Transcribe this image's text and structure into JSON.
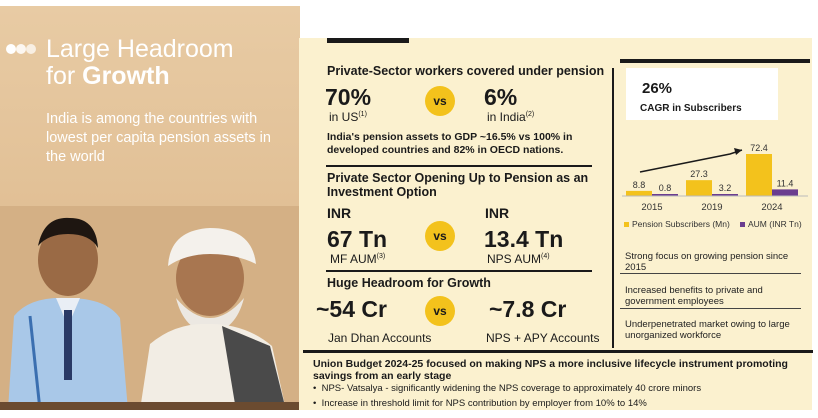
{
  "left": {
    "title_line1": "Large Headroom",
    "title_line2_prefix": "for ",
    "title_line2_bold": "Growth",
    "description": "India is among the countries with lowest per capita pension assets in the world"
  },
  "section1": {
    "title": "Private-Sector workers covered under pension",
    "left_value": "70%",
    "left_label": "in US",
    "left_sup": "(1)",
    "vs": "vs",
    "right_value": "6%",
    "right_label": "in India",
    "right_sup": "(2)",
    "note": "India's pension assets to GDP ~16.5% vs 100% in developed countries and 82% in OECD nations."
  },
  "section2": {
    "title": "Private Sector Opening Up to Pension as an Investment Option",
    "left_currency": "INR",
    "left_value": "67 Tn",
    "left_label": "MF AUM",
    "left_sup": "(3)",
    "vs": "vs",
    "right_currency": "INR",
    "right_value": "13.4 Tn",
    "right_label": "NPS AUM",
    "right_sup": "(4)"
  },
  "section3": {
    "title": "Huge Headroom for Growth",
    "left_value": "~54 Cr",
    "left_label": "Jan Dhan Accounts",
    "vs": "vs",
    "right_value": "~7.8 Cr",
    "right_label": "NPS + APY Accounts"
  },
  "cagr": {
    "value": "26%",
    "label": "CAGR in Subscribers"
  },
  "chart_data": {
    "type": "bar",
    "categories": [
      "2015",
      "2019",
      "2024"
    ],
    "series": [
      {
        "name": "Pension Subscribers (Mn)",
        "values": [
          8.8,
          27.3,
          72.4
        ],
        "color": "#f3c21c"
      },
      {
        "name": "AUM (INR Tn)",
        "values": [
          0.8,
          3.2,
          11.4
        ],
        "color": "#6a3d8f"
      }
    ],
    "value_labels": [
      [
        "8.8",
        "27.3",
        "72.4"
      ],
      [
        "0.8",
        "3.2",
        "11.4"
      ]
    ],
    "legend_placement": "bottom"
  },
  "facts": [
    "Strong focus on growing pension since 2015",
    "Increased benefits to private and government employees",
    "Underpenetrated market owing to large unorganized workforce"
  ],
  "budget": {
    "title": "Union Budget 2024-25 focused on making NPS a more inclusive lifecycle instrument promoting savings from an early stage",
    "bullets": [
      "NPS- Vatsalya - significantly widening the NPS coverage to approximately 40 crore minors",
      "Increase in threshold limit for NPS contribution by employer from 10% to 14%"
    ]
  },
  "colors": {
    "accent_yellow": "#f3c21c",
    "accent_purple": "#6a3d8f",
    "panel_cream": "#fbf1cf",
    "left_tan": "#e2c197"
  }
}
